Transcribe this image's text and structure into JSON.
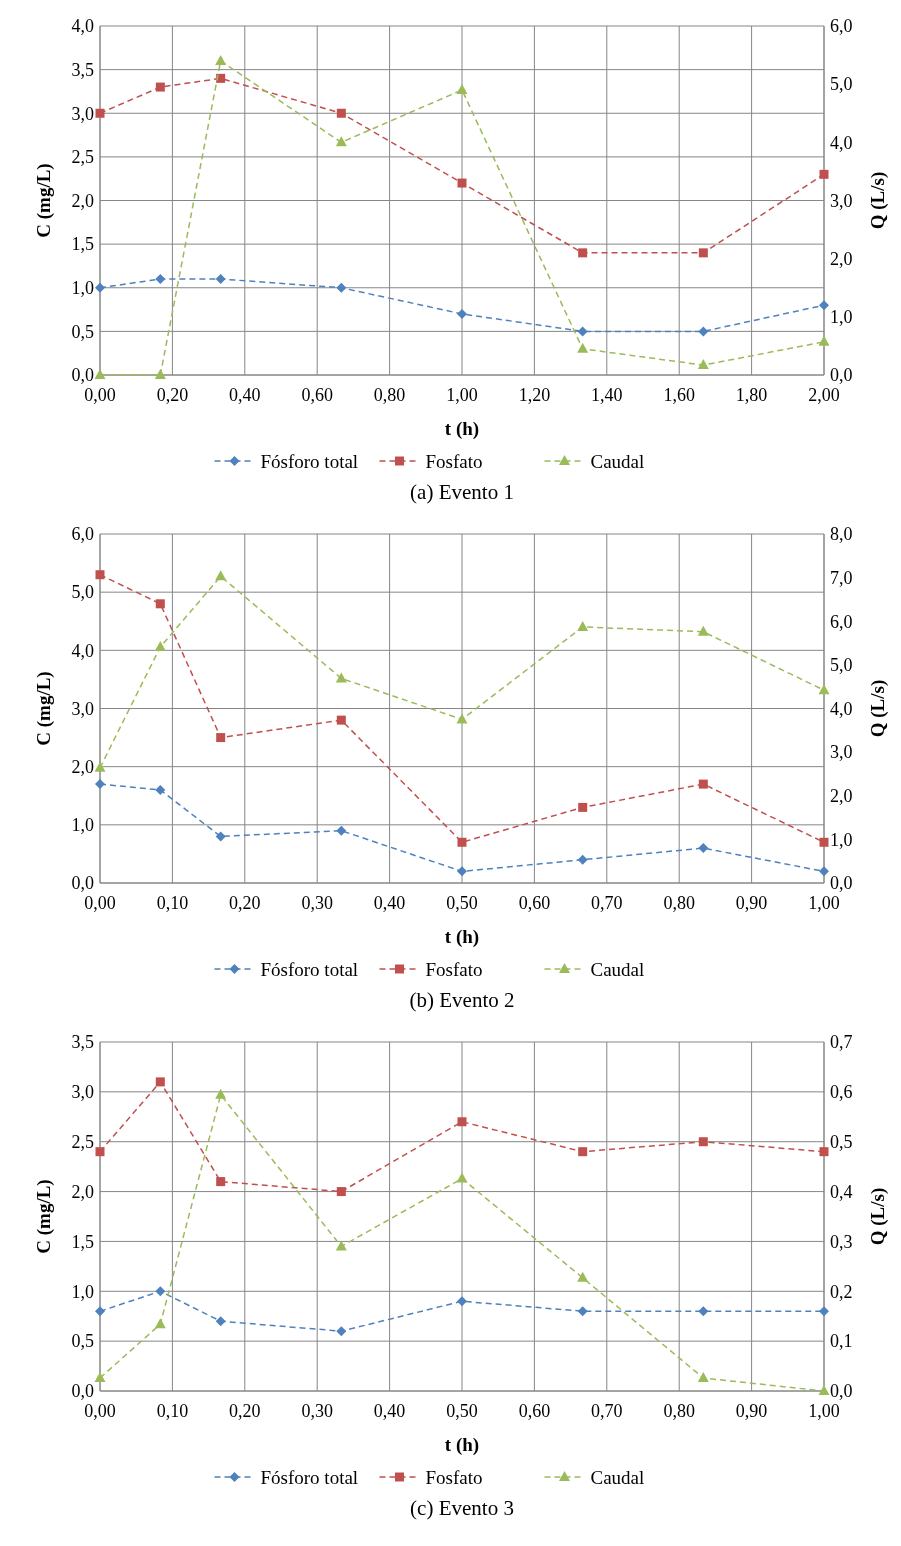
{
  "chart_data": [
    {
      "type": "line",
      "title": "(a) Evento 1",
      "xlabel": "t (h)",
      "ylabel": "C (mg/L)",
      "y2label": "Q (L/s)",
      "x": [
        0,
        0.1667,
        0.3333,
        0.6667,
        1.0,
        1.3333,
        1.6667,
        2.0
      ],
      "series": [
        {
          "name": "Fósforo total",
          "color": "#4f81bd",
          "marker": "diamond",
          "values": [
            1.0,
            1.1,
            1.1,
            1.0,
            0.7,
            0.5,
            0.5,
            0.8
          ]
        },
        {
          "name": "Fosfato",
          "color": "#c0504d",
          "marker": "square",
          "values": [
            3.0,
            3.3,
            3.4,
            3.0,
            2.2,
            1.4,
            1.4,
            2.3
          ]
        },
        {
          "name": "Caudal",
          "color": "#9bbb59",
          "marker": "triangle",
          "axis": "y2",
          "values": [
            0,
            0,
            5.4,
            4.0,
            4.9,
            0.45,
            0.17,
            0.57
          ]
        }
      ],
      "xlim": [
        0,
        2
      ],
      "xticks": [
        {
          "value": 0,
          "label": "0,00"
        },
        {
          "value": 0.2,
          "label": "0,20"
        },
        {
          "value": 0.4,
          "label": "0,40"
        },
        {
          "value": 0.6,
          "label": "0,60"
        },
        {
          "value": 0.8,
          "label": "0,80"
        },
        {
          "value": 1,
          "label": "1,00"
        },
        {
          "value": 1.2,
          "label": "1,20"
        },
        {
          "value": 1.4,
          "label": "1,40"
        },
        {
          "value": 1.6,
          "label": "1,60"
        },
        {
          "value": 1.8,
          "label": "1,80"
        },
        {
          "value": 2,
          "label": "2,00"
        }
      ],
      "ylim": [
        0,
        4
      ],
      "yticks": [
        {
          "value": 0,
          "label": "0,0"
        },
        {
          "value": 0.5,
          "label": "0,5"
        },
        {
          "value": 1,
          "label": "1,0"
        },
        {
          "value": 1.5,
          "label": "1,5"
        },
        {
          "value": 2,
          "label": "2,0"
        },
        {
          "value": 2.5,
          "label": "2,5"
        },
        {
          "value": 3,
          "label": "3,0"
        },
        {
          "value": 3.5,
          "label": "3,5"
        },
        {
          "value": 4,
          "label": "4,0"
        }
      ],
      "y2lim": [
        0,
        6
      ],
      "y2ticks": [
        {
          "value": 0,
          "label": "0,0"
        },
        {
          "value": 1,
          "label": "1,0"
        },
        {
          "value": 2,
          "label": "2,0"
        },
        {
          "value": 3,
          "label": "3,0"
        },
        {
          "value": 4,
          "label": "4,0"
        },
        {
          "value": 5,
          "label": "5,0"
        },
        {
          "value": 6,
          "label": "6,0"
        }
      ],
      "grid": true,
      "legend": "bottom",
      "line_style": "dashed"
    },
    {
      "type": "line",
      "title": "(b) Evento 2",
      "xlabel": "t (h)",
      "ylabel": "C (mg/L)",
      "y2label": "Q (L/s)",
      "x": [
        0,
        0.0833,
        0.1667,
        0.3333,
        0.5,
        0.6667,
        0.8333,
        1.0
      ],
      "series": [
        {
          "name": "Fósforo total",
          "color": "#4f81bd",
          "marker": "diamond",
          "values": [
            1.7,
            1.6,
            0.8,
            0.9,
            0.2,
            0.4,
            0.6,
            0.2
          ]
        },
        {
          "name": "Fosfato",
          "color": "#c0504d",
          "marker": "square",
          "values": [
            5.3,
            4.8,
            2.5,
            2.8,
            0.7,
            1.3,
            1.7,
            0.7
          ]
        },
        {
          "name": "Caudal",
          "color": "#9bbb59",
          "marker": "triangle",
          "axis": "y2",
          "values": [
            2.64,
            5.41,
            7.03,
            4.69,
            3.75,
            5.87,
            5.76,
            4.42
          ]
        }
      ],
      "xlim": [
        0,
        1
      ],
      "xticks": [
        {
          "value": 0,
          "label": "0,00"
        },
        {
          "value": 0.1,
          "label": "0,10"
        },
        {
          "value": 0.2,
          "label": "0,20"
        },
        {
          "value": 0.3,
          "label": "0,30"
        },
        {
          "value": 0.4,
          "label": "0,40"
        },
        {
          "value": 0.5,
          "label": "0,50"
        },
        {
          "value": 0.6,
          "label": "0,60"
        },
        {
          "value": 0.7,
          "label": "0,70"
        },
        {
          "value": 0.8,
          "label": "0,80"
        },
        {
          "value": 0.9,
          "label": "0,90"
        },
        {
          "value": 1,
          "label": "1,00"
        }
      ],
      "ylim": [
        0,
        6
      ],
      "yticks": [
        {
          "value": 0,
          "label": "0,0"
        },
        {
          "value": 1,
          "label": "1,0"
        },
        {
          "value": 2,
          "label": "2,0"
        },
        {
          "value": 3,
          "label": "3,0"
        },
        {
          "value": 4,
          "label": "4,0"
        },
        {
          "value": 5,
          "label": "5,0"
        },
        {
          "value": 6,
          "label": "6,0"
        }
      ],
      "y2lim": [
        0,
        8
      ],
      "y2ticks": [
        {
          "value": 0,
          "label": "0,0"
        },
        {
          "value": 1,
          "label": "1,0"
        },
        {
          "value": 2,
          "label": "2,0"
        },
        {
          "value": 3,
          "label": "3,0"
        },
        {
          "value": 4,
          "label": "4,0"
        },
        {
          "value": 5,
          "label": "5,0"
        },
        {
          "value": 6,
          "label": "6,0"
        },
        {
          "value": 7,
          "label": "7,0"
        },
        {
          "value": 8,
          "label": "8,0"
        }
      ],
      "grid": true,
      "legend": "bottom",
      "line_style": "dashed"
    },
    {
      "type": "line",
      "title": "(c) Evento 3",
      "xlabel": "t (h)",
      "ylabel": "C (mg/L)",
      "y2label": "Q (L/s)",
      "x": [
        0,
        0.0833,
        0.1667,
        0.3333,
        0.5,
        0.6667,
        0.8333,
        1.0
      ],
      "series": [
        {
          "name": "Fósforo total",
          "color": "#4f81bd",
          "marker": "diamond",
          "values": [
            0.8,
            1.0,
            0.7,
            0.6,
            0.9,
            0.8,
            0.8,
            0.8
          ]
        },
        {
          "name": "Fosfato",
          "color": "#c0504d",
          "marker": "square",
          "values": [
            2.4,
            3.1,
            2.1,
            2.0,
            2.7,
            2.4,
            2.5,
            2.4
          ]
        },
        {
          "name": "Caudal",
          "color": "#9bbb59",
          "marker": "triangle",
          "axis": "y2",
          "values": [
            0.026,
            0.134,
            0.594,
            0.29,
            0.426,
            0.227,
            0.026,
            0
          ]
        }
      ],
      "xlim": [
        0,
        1
      ],
      "xticks": [
        {
          "value": 0,
          "label": "0,00"
        },
        {
          "value": 0.1,
          "label": "0,10"
        },
        {
          "value": 0.2,
          "label": "0,20"
        },
        {
          "value": 0.3,
          "label": "0,30"
        },
        {
          "value": 0.4,
          "label": "0,40"
        },
        {
          "value": 0.5,
          "label": "0,50"
        },
        {
          "value": 0.6,
          "label": "0,60"
        },
        {
          "value": 0.7,
          "label": "0,70"
        },
        {
          "value": 0.8,
          "label": "0,80"
        },
        {
          "value": 0.9,
          "label": "0,90"
        },
        {
          "value": 1,
          "label": "1,00"
        }
      ],
      "ylim": [
        0,
        3.5
      ],
      "yticks": [
        {
          "value": 0,
          "label": "0,0"
        },
        {
          "value": 0.5,
          "label": "0,5"
        },
        {
          "value": 1,
          "label": "1,0"
        },
        {
          "value": 1.5,
          "label": "1,5"
        },
        {
          "value": 2,
          "label": "2,0"
        },
        {
          "value": 2.5,
          "label": "2,5"
        },
        {
          "value": 3,
          "label": "3,0"
        },
        {
          "value": 3.5,
          "label": "3,5"
        }
      ],
      "y2lim": [
        0,
        0.7
      ],
      "y2ticks": [
        {
          "value": 0,
          "label": "0,0"
        },
        {
          "value": 0.1,
          "label": "0,1"
        },
        {
          "value": 0.2,
          "label": "0,2"
        },
        {
          "value": 0.3,
          "label": "0,3"
        },
        {
          "value": 0.4,
          "label": "0,4"
        },
        {
          "value": 0.5,
          "label": "0,5"
        },
        {
          "value": 0.6,
          "label": "0,6"
        },
        {
          "value": 0.7,
          "label": "0,7"
        }
      ],
      "grid": true,
      "legend": "bottom",
      "line_style": "dashed"
    }
  ]
}
